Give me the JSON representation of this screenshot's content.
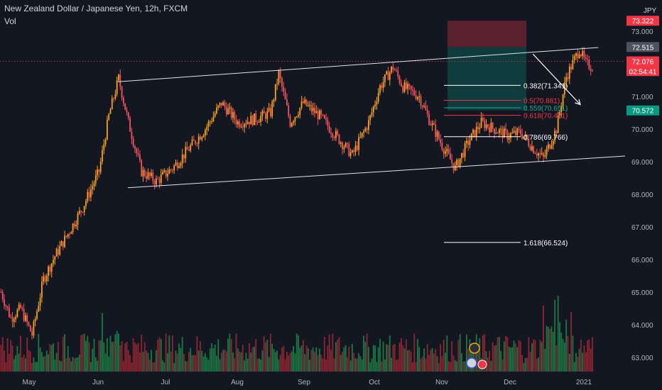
{
  "chart_data": {
    "type": "candlestick",
    "title": "New Zealand Dollar / Japanese Yen, 12h, FXCM",
    "indicator": "Vol",
    "currency": "JPY",
    "y_axis_ticks": [
      "73.000",
      "72.000",
      "71.000",
      "70.000",
      "69.000",
      "68.000",
      "67.000",
      "66.000",
      "65.000",
      "64.000",
      "63.000"
    ],
    "x_axis_ticks": [
      "May",
      "Jun",
      "Jul",
      "Aug",
      "Sep",
      "Oct",
      "Nov",
      "Dec",
      "2021"
    ],
    "price_tags": [
      {
        "label": "73.322",
        "value": 73.322,
        "color": "#f23645"
      },
      {
        "label": "72.515",
        "value": 72.515,
        "color": "#4c525e"
      },
      {
        "label": "72.076",
        "value": 72.076,
        "color": "#f23645"
      },
      {
        "label": "02:54:41",
        "value": 71.776,
        "color": "#f23645"
      },
      {
        "label": "70.572",
        "value": 70.572,
        "color": "#089981"
      }
    ],
    "fib_levels": [
      {
        "label": "0.382(71.341)",
        "value": 71.341,
        "color": "#ffffff"
      },
      {
        "label": "0.5(70.881)",
        "value": 70.881,
        "color": "#f23645"
      },
      {
        "label": "0.559(70.651)",
        "value": 70.651,
        "color": "#22ab94"
      },
      {
        "label": "0.618(70.421)",
        "value": 70.421,
        "color": "#f23645"
      },
      {
        "label": "0.786(69.766)",
        "value": 69.766,
        "color": "#ffffff"
      },
      {
        "label": "1.618(66.524)",
        "value": 66.524,
        "color": "#ffffff"
      }
    ],
    "price_anchors": [
      [
        0,
        65.0
      ],
      [
        6,
        64.2
      ],
      [
        12,
        64.5
      ],
      [
        19,
        63.7
      ],
      [
        26,
        65.4
      ],
      [
        33,
        66.1
      ],
      [
        40,
        66.7
      ],
      [
        50,
        67.6
      ],
      [
        60,
        68.7
      ],
      [
        66,
        70.4
      ],
      [
        72,
        71.55
      ],
      [
        78,
        70.2
      ],
      [
        86,
        68.7
      ],
      [
        95,
        68.4
      ],
      [
        105,
        68.8
      ],
      [
        115,
        69.4
      ],
      [
        125,
        70.0
      ],
      [
        135,
        70.8
      ],
      [
        145,
        70.2
      ],
      [
        155,
        70.3
      ],
      [
        165,
        70.5
      ],
      [
        170,
        71.7
      ],
      [
        177,
        70.2
      ],
      [
        185,
        70.8
      ],
      [
        195,
        70.4
      ],
      [
        205,
        69.8
      ],
      [
        215,
        69.2
      ],
      [
        225,
        70.2
      ],
      [
        232,
        71.3
      ],
      [
        240,
        71.9
      ],
      [
        246,
        71.3
      ],
      [
        256,
        71.0
      ],
      [
        262,
        70.3
      ],
      [
        270,
        69.5
      ],
      [
        278,
        68.8
      ],
      [
        286,
        69.6
      ],
      [
        294,
        70.2
      ],
      [
        302,
        70.0
      ],
      [
        310,
        69.8
      ],
      [
        318,
        69.9
      ],
      [
        326,
        69.4
      ],
      [
        332,
        69.1
      ],
      [
        340,
        70.0
      ],
      [
        346,
        71.6
      ],
      [
        354,
        72.45
      ],
      [
        358,
        72.0
      ],
      [
        362,
        71.9
      ]
    ],
    "volume_seed": 7,
    "channel": {
      "upper": [
        [
          72,
          71.45
        ],
        [
          366,
          72.5
        ]
      ],
      "lower": [
        [
          78,
          68.2
        ],
        [
          422,
          69.3
        ]
      ]
    },
    "trade_box": {
      "stop": 73.322,
      "entry": 72.515,
      "target": 70.572
    },
    "projection_arrow": {
      "from": [
        326,
        72.3
      ],
      "to": [
        355,
        70.75
      ]
    },
    "last_price": 72.076,
    "colors": {
      "up": "#f7a21b",
      "down": "#f7525f",
      "vol_up": "#1d8a4a",
      "vol_down": "#a52834",
      "line": "#e0e3eb",
      "bg": "#131722"
    }
  }
}
